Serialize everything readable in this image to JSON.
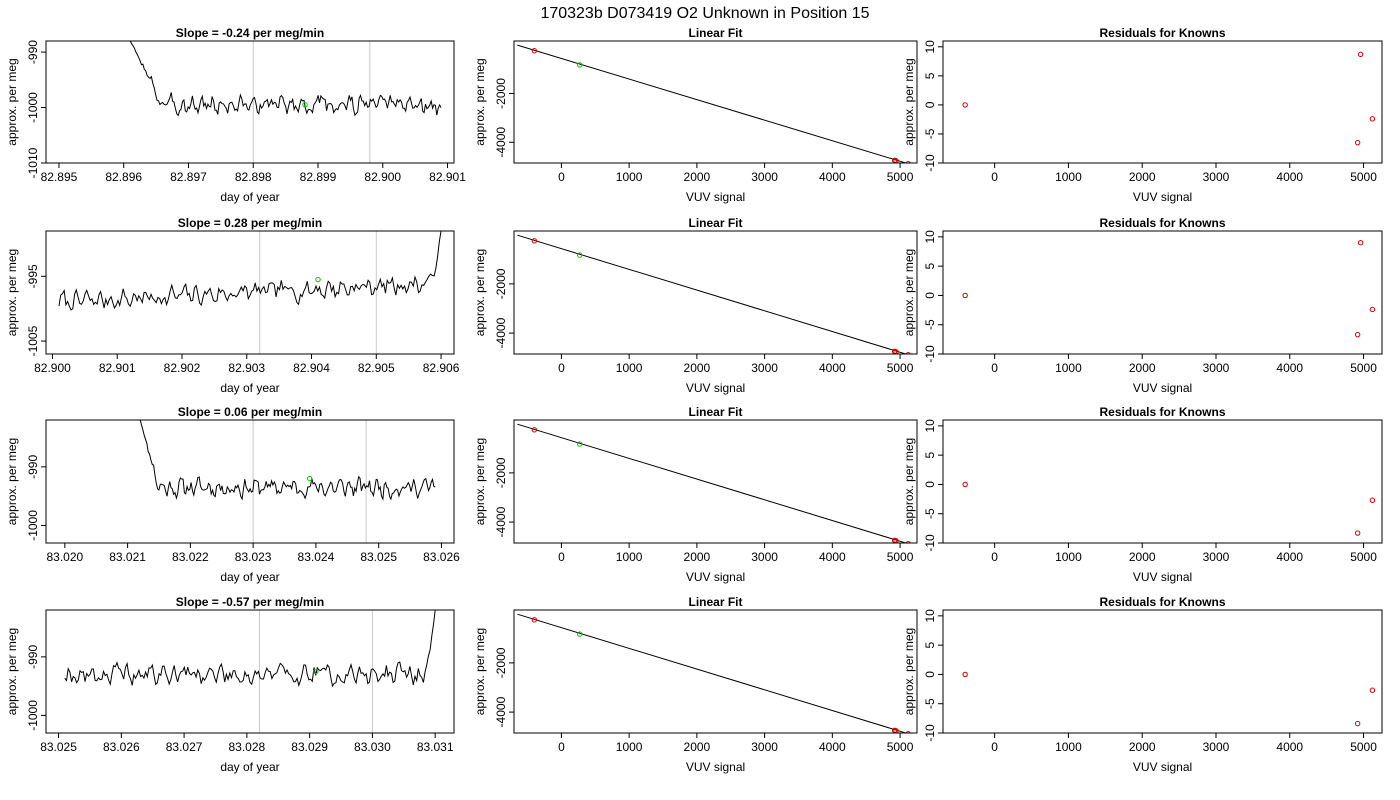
{
  "figure_title": "170323b      D073419    O2 Unknown in Position  15",
  "chart_data": [
    {
      "type": "line",
      "title": "Slope =  -0.24  per meg/min",
      "xlabel": "day of year",
      "ylabel": "approx. per meg",
      "xlim": [
        82.8948,
        82.9011
      ],
      "ylim": [
        -1010,
        -988
      ],
      "xticks": [
        "82.895",
        "82.896",
        "82.897",
        "82.898",
        "82.899",
        "82.900",
        "82.901"
      ],
      "yticks": [
        "-1010",
        "-1000",
        "-990"
      ],
      "vlines": [
        82.898,
        82.8998
      ],
      "marker": {
        "x": 82.8988,
        "y": -999.5
      },
      "trace": {
        "start": 82.8961,
        "end": 82.9009,
        "base": -999.5,
        "amp": 2.2,
        "spike_start": -988,
        "settle": 82.8966,
        "tail": -1001,
        "seed": 3
      }
    },
    {
      "type": "line",
      "title": "Slope =  0.28  per meg/min",
      "xlabel": "day of year",
      "ylabel": "approx. per meg",
      "xlim": [
        82.8999,
        82.9062
      ],
      "ylim": [
        -1007,
        -988
      ],
      "xticks": [
        "82.900",
        "82.901",
        "82.902",
        "82.903",
        "82.904",
        "82.905",
        "82.906"
      ],
      "yticks": [
        "-1005",
        "-995"
      ],
      "vlines": [
        82.9032,
        82.905
      ],
      "marker": {
        "x": 82.9041,
        "y": -995.5
      },
      "trace": {
        "start": 82.9001,
        "end": 82.906,
        "base": -997.5,
        "amp": 2.0,
        "trend": 3.0,
        "spike_end": -988,
        "seed": 7
      }
    },
    {
      "type": "line",
      "title": "Slope =  0.06  per meg/min",
      "xlabel": "day of year",
      "ylabel": "approx. per meg",
      "xlim": [
        83.0197,
        83.0262
      ],
      "ylim": [
        -1003,
        -982
      ],
      "xticks": [
        "83.020",
        "83.021",
        "83.022",
        "83.023",
        "83.024",
        "83.025",
        "83.026"
      ],
      "yticks": [
        "-1000",
        "-990"
      ],
      "vlines": [
        83.023,
        83.0248
      ],
      "marker": {
        "x": 83.0239,
        "y": -992
      },
      "trace": {
        "start": 83.0212,
        "end": 83.0259,
        "base": -993.5,
        "amp": 2.0,
        "spike_start": -982,
        "settle": 83.0215,
        "seed": 11
      }
    },
    {
      "type": "line",
      "title": "Slope =  -0.57  per meg/min",
      "xlabel": "day of year",
      "ylabel": "approx. per meg",
      "xlim": [
        83.0248,
        83.0313
      ],
      "ylim": [
        -1003,
        -982
      ],
      "xticks": [
        "83.025",
        "83.026",
        "83.027",
        "83.028",
        "83.029",
        "83.030",
        "83.031"
      ],
      "yticks": [
        "-1000",
        "-990"
      ],
      "vlines": [
        83.0282,
        83.03
      ],
      "marker": {
        "x": 83.0291,
        "y": -992.5
      },
      "trace": {
        "start": 83.0251,
        "end": 83.031,
        "base": -993,
        "amp": 2.3,
        "spike_end": -982,
        "seed": 19
      }
    },
    {
      "type": "scatter",
      "title": "Linear Fit",
      "xlabel": "VUV signal",
      "ylabel": "approx. per meg",
      "xlim": [
        -700,
        5250
      ],
      "ylim": [
        -4850,
        150
      ],
      "xticks": [
        "0",
        "1000",
        "2000",
        "3000",
        "4000",
        "5000"
      ],
      "yticks": [
        "-4000",
        "-2000"
      ],
      "line": {
        "x": [
          -650,
          5120
        ],
        "y": [
          -20,
          -4880
        ]
      },
      "points": [
        {
          "x": -400,
          "y": -250,
          "kind": "known"
        },
        {
          "x": 4920,
          "y": -4740,
          "kind": "known"
        },
        {
          "x": 4940,
          "y": -4760,
          "kind": "known"
        },
        {
          "x": 5120,
          "y": -4880,
          "kind": "known"
        },
        {
          "x": 270,
          "y": -830,
          "kind": "unknown"
        }
      ]
    },
    {
      "type": "scatter",
      "title": "Residuals for Knowns",
      "xlabel": "VUV signal",
      "ylabel": "approx. per meg",
      "xlim": [
        -700,
        5250
      ],
      "ylim": [
        -10,
        11
      ],
      "xticks": [
        "0",
        "1000",
        "2000",
        "3000",
        "4000",
        "5000"
      ],
      "yticks": [
        "-10",
        "-5",
        "0",
        "5",
        "10"
      ],
      "rows": [
        [
          {
            "x": -400,
            "y": 0
          },
          {
            "x": 4960,
            "y": 8.7
          },
          {
            "x": 4920,
            "y": -6.5
          },
          {
            "x": 5120,
            "y": -2.4
          }
        ],
        [
          {
            "x": -400,
            "y": 0
          },
          {
            "x": 4960,
            "y": 9.0
          },
          {
            "x": 4920,
            "y": -6.7
          },
          {
            "x": 5120,
            "y": -2.4
          }
        ],
        [
          {
            "x": -400,
            "y": 0
          },
          {
            "x": 4920,
            "y": -8.3
          },
          {
            "x": 5120,
            "y": -2.7
          }
        ],
        [
          {
            "x": -400,
            "y": 0
          },
          {
            "x": 4920,
            "y": -8.4
          },
          {
            "x": 5120,
            "y": -2.7
          }
        ]
      ]
    }
  ]
}
